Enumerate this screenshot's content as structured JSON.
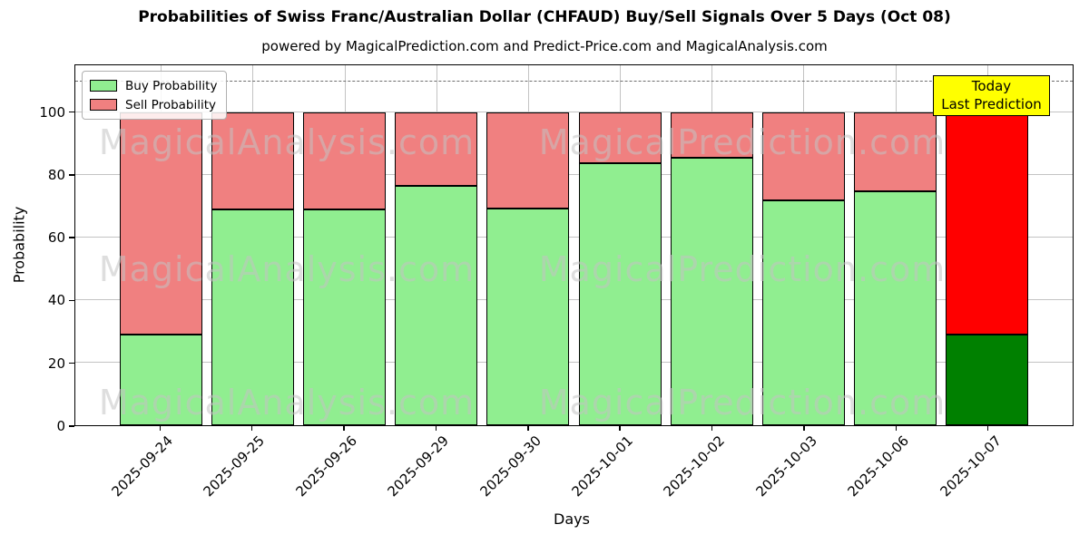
{
  "title": "Probabilities of Swiss Franc/Australian Dollar (CHFAUD) Buy/Sell Signals Over 5 Days (Oct 08)",
  "subtitle": "powered by MagicalPrediction.com and Predict-Price.com and MagicalAnalysis.com",
  "axes": {
    "xlabel": "Days",
    "ylabel": "Probability",
    "yticks": [
      0,
      20,
      40,
      60,
      80,
      100
    ],
    "ylim": [
      0,
      115.2
    ],
    "grid": true,
    "dashed_line_y": 110
  },
  "legend": {
    "position": "upper-left",
    "items": [
      {
        "label": "Buy Probability",
        "color": "#90ee90"
      },
      {
        "label": "Sell Probability",
        "color": "#f08080"
      }
    ]
  },
  "annotation_box": {
    "line1": "Today",
    "line2": "Last Prediction",
    "bg_color": "#ffff00"
  },
  "watermarks": [
    "MagicalAnalysis.com",
    "MagicalPrediction.com"
  ],
  "chart_data": {
    "type": "bar",
    "stacked": true,
    "categories": [
      "2025-09-24",
      "2025-09-25",
      "2025-09-26",
      "2025-09-29",
      "2025-09-30",
      "2025-10-01",
      "2025-10-02",
      "2025-10-03",
      "2025-10-06",
      "2025-10-07"
    ],
    "series": [
      {
        "name": "Buy Probability",
        "color": "#90ee90",
        "today_color": "#008000",
        "values": [
          29,
          69,
          69,
          76.5,
          69.5,
          84,
          85.5,
          72,
          75,
          29
        ]
      },
      {
        "name": "Sell Probability",
        "color": "#f08080",
        "today_color": "#ff0000",
        "values": [
          71,
          31,
          31,
          23.5,
          30.5,
          16,
          14.5,
          28,
          25,
          71
        ]
      }
    ],
    "today_index": 9,
    "bar_edge_color": "#000000"
  }
}
